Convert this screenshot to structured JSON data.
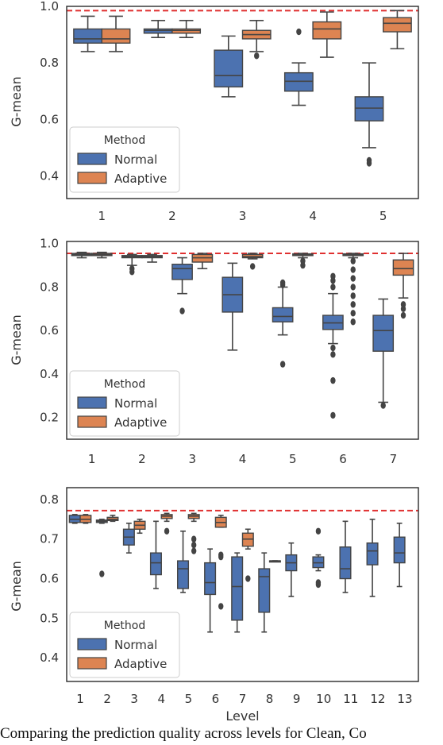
{
  "caption": "Comparing the prediction quality across levels for Clean, Co",
  "colors": {
    "normal": "#4c72b0",
    "adaptive": "#dd8452",
    "reference": "#e03030",
    "line": "#444444"
  },
  "chart_data": [
    {
      "type": "box",
      "ylabel": "G-mean",
      "xlabel": "",
      "ylim": [
        0.32,
        1.0
      ],
      "yticks": [
        0.4,
        0.6,
        0.8,
        1.0
      ],
      "reference_line": 0.985,
      "legend": {
        "title": "Method",
        "position": "bottom-left",
        "entries": [
          "Normal",
          "Adaptive"
        ]
      },
      "categories": [
        "1",
        "2",
        "3",
        "4",
        "5"
      ],
      "series": [
        {
          "name": "Normal",
          "color": "#4c72b0",
          "boxes": [
            {
              "whislo": 0.84,
              "q1": 0.87,
              "med": 0.885,
              "q3": 0.92,
              "whishi": 0.965,
              "fliers": []
            },
            {
              "whislo": 0.89,
              "q1": 0.905,
              "med": 0.915,
              "q3": 0.92,
              "whishi": 0.95,
              "fliers": []
            },
            {
              "whislo": 0.68,
              "q1": 0.715,
              "med": 0.755,
              "q3": 0.845,
              "whishi": 0.895,
              "fliers": []
            },
            {
              "whislo": 0.65,
              "q1": 0.7,
              "med": 0.735,
              "q3": 0.765,
              "whishi": 0.8,
              "fliers": [
                0.91
              ]
            },
            {
              "whislo": 0.5,
              "q1": 0.595,
              "med": 0.64,
              "q3": 0.68,
              "whishi": 0.8,
              "fliers": [
                0.455,
                0.445
              ]
            }
          ]
        },
        {
          "name": "Adaptive",
          "color": "#dd8452",
          "boxes": [
            {
              "whislo": 0.84,
              "q1": 0.87,
              "med": 0.885,
              "q3": 0.92,
              "whishi": 0.965,
              "fliers": []
            },
            {
              "whislo": 0.89,
              "q1": 0.905,
              "med": 0.915,
              "q3": 0.92,
              "whishi": 0.95,
              "fliers": []
            },
            {
              "whislo": 0.84,
              "q1": 0.885,
              "med": 0.9,
              "q3": 0.915,
              "whishi": 0.95,
              "fliers": [
                0.825
              ]
            },
            {
              "whislo": 0.82,
              "q1": 0.885,
              "med": 0.92,
              "q3": 0.945,
              "whishi": 0.98,
              "fliers": []
            },
            {
              "whislo": 0.85,
              "q1": 0.91,
              "med": 0.94,
              "q3": 0.96,
              "whishi": 0.985,
              "fliers": []
            }
          ]
        }
      ]
    },
    {
      "type": "box",
      "ylabel": "G-mean",
      "xlabel": "",
      "ylim": [
        0.1,
        1.01
      ],
      "yticks": [
        0.2,
        0.4,
        0.6,
        0.8,
        1.0
      ],
      "reference_line": 0.955,
      "legend": {
        "title": "Method",
        "position": "bottom-left",
        "entries": [
          "Normal",
          "Adaptive"
        ]
      },
      "categories": [
        "1",
        "2",
        "3",
        "4",
        "5",
        "6",
        "7"
      ],
      "series": [
        {
          "name": "Normal",
          "color": "#4c72b0",
          "boxes": [
            {
              "whislo": 0.935,
              "q1": 0.945,
              "med": 0.95,
              "q3": 0.955,
              "whishi": 0.96,
              "fliers": []
            },
            {
              "whislo": 0.9,
              "q1": 0.935,
              "med": 0.94,
              "q3": 0.945,
              "whishi": 0.95,
              "fliers": [
                0.885,
                0.87
              ]
            },
            {
              "whislo": 0.77,
              "q1": 0.835,
              "med": 0.885,
              "q3": 0.905,
              "whishi": 0.935,
              "fliers": [
                0.69
              ]
            },
            {
              "whislo": 0.51,
              "q1": 0.685,
              "med": 0.765,
              "q3": 0.845,
              "whishi": 0.91,
              "fliers": []
            },
            {
              "whislo": 0.58,
              "q1": 0.64,
              "med": 0.665,
              "q3": 0.705,
              "whishi": 0.8,
              "fliers": [
                0.82,
                0.81,
                0.445
              ]
            },
            {
              "whislo": 0.54,
              "q1": 0.605,
              "med": 0.635,
              "q3": 0.67,
              "whishi": 0.77,
              "fliers": [
                0.85,
                0.83,
                0.8,
                0.52,
                0.49,
                0.37,
                0.21
              ]
            },
            {
              "whislo": 0.27,
              "q1": 0.505,
              "med": 0.6,
              "q3": 0.67,
              "whishi": 0.745,
              "fliers": [
                0.255
              ]
            }
          ]
        },
        {
          "name": "Adaptive",
          "color": "#dd8452",
          "boxes": [
            {
              "whislo": 0.935,
              "q1": 0.945,
              "med": 0.95,
              "q3": 0.955,
              "whishi": 0.96,
              "fliers": []
            },
            {
              "whislo": 0.915,
              "q1": 0.935,
              "med": 0.94,
              "q3": 0.945,
              "whishi": 0.95,
              "fliers": []
            },
            {
              "whislo": 0.885,
              "q1": 0.915,
              "med": 0.935,
              "q3": 0.95,
              "whishi": 0.955,
              "fliers": []
            },
            {
              "whislo": 0.93,
              "q1": 0.935,
              "med": 0.94,
              "q3": 0.95,
              "whishi": 0.955,
              "fliers": [
                0.895
              ]
            },
            {
              "whislo": 0.935,
              "q1": 0.945,
              "med": 0.95,
              "q3": 0.953,
              "whishi": 0.955,
              "fliers": [
                0.92,
                0.9
              ]
            },
            {
              "whislo": 0.935,
              "q1": 0.945,
              "med": 0.95,
              "q3": 0.953,
              "whishi": 0.955,
              "fliers": [
                0.92,
                0.88,
                0.84,
                0.8,
                0.76,
                0.72,
                0.68,
                0.64
              ]
            },
            {
              "whislo": 0.75,
              "q1": 0.855,
              "med": 0.885,
              "q3": 0.925,
              "whishi": 0.955,
              "fliers": [
                0.72,
                0.7,
                0.67
              ]
            }
          ]
        }
      ]
    },
    {
      "type": "box",
      "ylabel": "G-mean",
      "xlabel": "Level",
      "ylim": [
        0.34,
        0.83
      ],
      "yticks": [
        0.4,
        0.5,
        0.6,
        0.7,
        0.8
      ],
      "reference_line": 0.772,
      "legend": {
        "title": "Method",
        "position": "bottom-left",
        "entries": [
          "Normal",
          "Adaptive"
        ]
      },
      "categories": [
        "1",
        "2",
        "3",
        "4",
        "5",
        "6",
        "7",
        "8",
        "9",
        "10",
        "11",
        "12",
        "13"
      ],
      "series": [
        {
          "name": "Normal",
          "color": "#4c72b0",
          "boxes": [
            {
              "whislo": 0.74,
              "q1": 0.742,
              "med": 0.75,
              "q3": 0.76,
              "whishi": 0.762,
              "fliers": []
            },
            {
              "whislo": 0.74,
              "q1": 0.742,
              "med": 0.745,
              "q3": 0.748,
              "whishi": 0.75,
              "fliers": [
                0.612
              ]
            },
            {
              "whislo": 0.665,
              "q1": 0.685,
              "med": 0.705,
              "q3": 0.725,
              "whishi": 0.74,
              "fliers": []
            },
            {
              "whislo": 0.575,
              "q1": 0.61,
              "med": 0.64,
              "q3": 0.665,
              "whishi": 0.745,
              "fliers": []
            },
            {
              "whislo": 0.565,
              "q1": 0.575,
              "med": 0.625,
              "q3": 0.645,
              "whishi": 0.72,
              "fliers": []
            },
            {
              "whislo": 0.465,
              "q1": 0.56,
              "med": 0.59,
              "q3": 0.64,
              "whishi": 0.675,
              "fliers": []
            },
            {
              "whislo": 0.465,
              "q1": 0.495,
              "med": 0.58,
              "q3": 0.655,
              "whishi": 0.665,
              "fliers": []
            },
            {
              "whislo": 0.465,
              "q1": 0.515,
              "med": 0.605,
              "q3": 0.625,
              "whishi": 0.665,
              "fliers": []
            },
            {
              "whislo": 0.555,
              "q1": 0.62,
              "med": 0.64,
              "q3": 0.66,
              "whishi": 0.69,
              "fliers": []
            },
            {
              "whislo": 0.62,
              "q1": 0.628,
              "med": 0.64,
              "q3": 0.655,
              "whishi": 0.66,
              "fliers": [
                0.72,
                0.59,
                0.585
              ]
            },
            {
              "whislo": 0.565,
              "q1": 0.6,
              "med": 0.625,
              "q3": 0.68,
              "whishi": 0.745,
              "fliers": []
            },
            {
              "whislo": 0.555,
              "q1": 0.635,
              "med": 0.67,
              "q3": 0.69,
              "whishi": 0.75,
              "fliers": []
            },
            {
              "whislo": 0.58,
              "q1": 0.64,
              "med": 0.665,
              "q3": 0.705,
              "whishi": 0.74,
              "fliers": []
            }
          ]
        },
        {
          "name": "Adaptive",
          "color": "#dd8452",
          "boxes": [
            {
              "whislo": 0.74,
              "q1": 0.742,
              "med": 0.75,
              "q3": 0.76,
              "whishi": 0.762,
              "fliers": []
            },
            {
              "whislo": 0.745,
              "q1": 0.747,
              "med": 0.75,
              "q3": 0.755,
              "whishi": 0.76,
              "fliers": []
            },
            {
              "whislo": 0.715,
              "q1": 0.725,
              "med": 0.735,
              "q3": 0.745,
              "whishi": 0.75,
              "fliers": []
            },
            {
              "whislo": 0.745,
              "q1": 0.752,
              "med": 0.758,
              "q3": 0.762,
              "whishi": 0.765,
              "fliers": [
                0.72
              ]
            },
            {
              "whislo": 0.745,
              "q1": 0.752,
              "med": 0.758,
              "q3": 0.762,
              "whishi": 0.765,
              "fliers": [
                0.7,
                0.685,
                0.67
              ]
            },
            {
              "whislo": 0.73,
              "q1": 0.73,
              "med": 0.742,
              "q3": 0.755,
              "whishi": 0.76,
              "fliers": [
                0.66,
                0.655,
                0.53
              ]
            },
            {
              "whislo": 0.675,
              "q1": 0.682,
              "med": 0.7,
              "q3": 0.715,
              "whishi": 0.725,
              "fliers": [
                0.6
              ]
            },
            {
              "whislo": 0.645,
              "q1": 0.645,
              "med": 0.645,
              "q3": 0.645,
              "whishi": 0.645,
              "fliers": []
            },
            {
              "whislo": null,
              "q1": null,
              "med": null,
              "q3": null,
              "whishi": null,
              "fliers": []
            },
            {
              "whislo": null,
              "q1": null,
              "med": null,
              "q3": null,
              "whishi": null,
              "fliers": []
            },
            {
              "whislo": null,
              "q1": null,
              "med": null,
              "q3": null,
              "whishi": null,
              "fliers": []
            },
            {
              "whislo": null,
              "q1": null,
              "med": null,
              "q3": null,
              "whishi": null,
              "fliers": []
            },
            {
              "whislo": null,
              "q1": null,
              "med": null,
              "q3": null,
              "whishi": null,
              "fliers": []
            }
          ]
        }
      ]
    }
  ]
}
